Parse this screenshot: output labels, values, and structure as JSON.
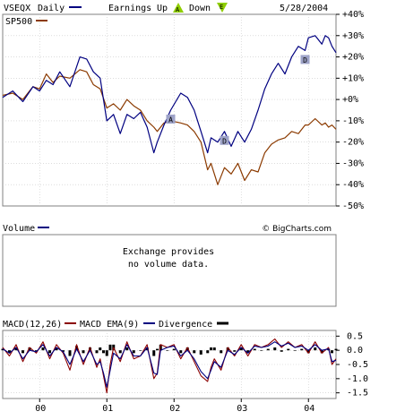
{
  "colors": {
    "vseqx": "#000080",
    "sp500": "#8b3a00",
    "ema_line": "#f0a070",
    "macd": "#000080",
    "macd_ema": "#8b0000",
    "divergence": "#000000",
    "frame": "#808080",
    "grid": "#c8c8c8",
    "earnings_up": "#8fce00",
    "earnings_down": "#8fce00",
    "marker_box": "#9ea3c8"
  },
  "header": {
    "symbol": "VSEQX",
    "period": "Daily",
    "earnings_label": "Earnings",
    "up_label": "Up",
    "down_label": "Down",
    "up_marker": "A",
    "down_marker": "E",
    "date": "5/28/2004"
  },
  "legend": {
    "sp500": "SP500"
  },
  "volume_panel": {
    "title": "Volume",
    "message_line1": "Exchange provides",
    "message_line2": "no volume data.",
    "watermark": "© BigCharts.com"
  },
  "macd_panel": {
    "macd_label": "MACD(12,26)",
    "ema_label": "MACD EMA(9)",
    "divergence_label": "Divergence"
  },
  "markers": [
    {
      "letter": "A",
      "date": "2001.95"
    },
    {
      "letter": "D",
      "date": "2002.75"
    },
    {
      "letter": "D",
      "date": "2003.95"
    }
  ],
  "chart_data": [
    {
      "type": "line",
      "title": "VSEQX Daily",
      "ylabel": "",
      "y_ticks": [
        "+40%",
        "+30%",
        "+20%",
        "+10%",
        "+0%",
        "-10%",
        "-20%",
        "-30%",
        "-40%",
        "-50%"
      ],
      "ylim": [
        -50,
        40
      ],
      "x_ticks": [
        "00",
        "01",
        "02",
        "03",
        "04"
      ],
      "xlim": [
        1999.45,
        2004.41
      ],
      "grid": true,
      "series": [
        {
          "name": "VSEQX",
          "x": [
            1999.45,
            1999.6,
            1999.75,
            1999.9,
            2000.0,
            2000.1,
            2000.2,
            2000.3,
            2000.45,
            2000.6,
            2000.7,
            2000.8,
            2000.9,
            2001.0,
            2001.1,
            2001.2,
            2001.3,
            2001.4,
            2001.5,
            2001.6,
            2001.7,
            2001.75,
            2001.85,
            2001.95,
            2002.1,
            2002.2,
            2002.3,
            2002.4,
            2002.5,
            2002.55,
            2002.65,
            2002.75,
            2002.85,
            2002.95,
            2003.05,
            2003.15,
            2003.25,
            2003.35,
            2003.45,
            2003.55,
            2003.65,
            2003.75,
            2003.85,
            2003.95,
            2004.0,
            2004.1,
            2004.2,
            2004.25,
            2004.3,
            2004.35,
            2004.41
          ],
          "values": [
            1,
            4,
            -1,
            6,
            4,
            9,
            7,
            13,
            6,
            20,
            19,
            13,
            10,
            -10,
            -7,
            -16,
            -7,
            -9,
            -6,
            -13,
            -25,
            -20,
            -12,
            -5,
            3,
            1,
            -5,
            -15,
            -25,
            -18,
            -20,
            -15,
            -22,
            -15,
            -20,
            -14,
            -5,
            5,
            12,
            17,
            12,
            20,
            25,
            23,
            29,
            30,
            26,
            30,
            29,
            25,
            22
          ]
        },
        {
          "name": "SP500",
          "x": [
            1999.45,
            1999.6,
            1999.75,
            1999.9,
            2000.0,
            2000.1,
            2000.2,
            2000.3,
            2000.45,
            2000.6,
            2000.7,
            2000.8,
            2000.9,
            2001.0,
            2001.1,
            2001.2,
            2001.3,
            2001.4,
            2001.5,
            2001.6,
            2001.7,
            2001.75,
            2001.85,
            2001.95,
            2002.1,
            2002.2,
            2002.3,
            2002.4,
            2002.5,
            2002.55,
            2002.65,
            2002.75,
            2002.85,
            2002.95,
            2003.05,
            2003.15,
            2003.25,
            2003.35,
            2003.45,
            2003.55,
            2003.65,
            2003.75,
            2003.85,
            2003.95,
            2004.0,
            2004.1,
            2004.2,
            2004.25,
            2004.3,
            2004.35,
            2004.41
          ],
          "values": [
            2,
            3,
            0,
            6,
            5,
            12,
            8,
            11,
            10,
            14,
            13,
            7,
            5,
            -4,
            -2,
            -5,
            0,
            -3,
            -5,
            -10,
            -13,
            -15,
            -11,
            -10,
            -11,
            -12,
            -15,
            -20,
            -33,
            -30,
            -40,
            -32,
            -35,
            -30,
            -38,
            -33,
            -34,
            -25,
            -21,
            -19,
            -18,
            -15,
            -16,
            -12,
            -12,
            -9,
            -12,
            -11,
            -13,
            -12,
            -14
          ]
        }
      ]
    },
    {
      "type": "line",
      "title": "MACD",
      "y_ticks": [
        "0.5",
        "0.0",
        "-0.5",
        "-1.0",
        "-1.5"
      ],
      "ylim": [
        -1.7,
        0.7
      ],
      "x_ticks": [
        "00",
        "01",
        "02",
        "03",
        "04"
      ],
      "xlim": [
        1999.45,
        2004.41
      ],
      "grid": true,
      "series": [
        {
          "name": "MACD(12,26)",
          "x": [
            1999.45,
            1999.55,
            1999.65,
            1999.75,
            1999.85,
            1999.95,
            2000.05,
            2000.15,
            2000.25,
            2000.35,
            2000.45,
            2000.55,
            2000.65,
            2000.75,
            2000.85,
            2000.9,
            2000.95,
            2001.0,
            2001.05,
            2001.1,
            2001.2,
            2001.3,
            2001.4,
            2001.5,
            2001.6,
            2001.7,
            2001.75,
            2001.8,
            2001.9,
            2002.0,
            2002.1,
            2002.2,
            2002.3,
            2002.4,
            2002.5,
            2002.55,
            2002.6,
            2002.7,
            2002.8,
            2002.9,
            2003.0,
            2003.1,
            2003.2,
            2003.3,
            2003.4,
            2003.5,
            2003.6,
            2003.7,
            2003.8,
            2003.9,
            2004.0,
            2004.1,
            2004.2,
            2004.3,
            2004.35,
            2004.41
          ],
          "values": [
            0.1,
            -0.2,
            0.2,
            -0.4,
            0.1,
            -0.1,
            0.3,
            -0.3,
            0.2,
            -0.1,
            -0.7,
            0.2,
            -0.5,
            0.1,
            -0.6,
            -0.3,
            -0.9,
            -1.5,
            -0.5,
            0.1,
            -0.4,
            0.3,
            -0.3,
            -0.2,
            0.2,
            -1.0,
            -0.8,
            0.2,
            0.1,
            0.2,
            -0.3,
            0.1,
            -0.4,
            -0.9,
            -1.1,
            -0.6,
            -0.3,
            -0.7,
            0.1,
            -0.2,
            0.2,
            -0.2,
            0.2,
            0.1,
            0.2,
            0.4,
            0.1,
            0.3,
            0.1,
            0.2,
            -0.1,
            0.3,
            -0.1,
            0.1,
            -0.5,
            -0.3
          ]
        },
        {
          "name": "MACD EMA(9)",
          "x": [
            1999.45,
            1999.55,
            1999.65,
            1999.75,
            1999.85,
            1999.95,
            2000.05,
            2000.15,
            2000.25,
            2000.35,
            2000.45,
            2000.55,
            2000.65,
            2000.75,
            2000.85,
            2000.9,
            2000.95,
            2001.0,
            2001.05,
            2001.1,
            2001.2,
            2001.3,
            2001.4,
            2001.5,
            2001.6,
            2001.7,
            2001.75,
            2001.8,
            2001.9,
            2002.0,
            2002.1,
            2002.2,
            2002.3,
            2002.4,
            2002.5,
            2002.55,
            2002.6,
            2002.7,
            2002.8,
            2002.9,
            2003.0,
            2003.1,
            2003.2,
            2003.3,
            2003.4,
            2003.5,
            2003.6,
            2003.7,
            2003.8,
            2003.9,
            2004.0,
            2004.1,
            2004.2,
            2004.3,
            2004.35,
            2004.41
          ],
          "values": [
            0.05,
            -0.1,
            0.1,
            -0.3,
            0.0,
            -0.05,
            0.2,
            -0.2,
            0.1,
            -0.05,
            -0.5,
            0.05,
            -0.4,
            0.0,
            -0.5,
            -0.4,
            -0.8,
            -1.3,
            -0.7,
            -0.1,
            -0.3,
            0.2,
            -0.2,
            -0.2,
            0.1,
            -0.8,
            -0.85,
            0.0,
            0.1,
            0.15,
            -0.2,
            0.0,
            -0.3,
            -0.75,
            -1.0,
            -0.7,
            -0.4,
            -0.6,
            0.0,
            -0.15,
            0.1,
            -0.1,
            0.15,
            0.1,
            0.15,
            0.3,
            0.15,
            0.25,
            0.1,
            0.15,
            0.0,
            0.2,
            0.0,
            0.05,
            -0.4,
            -0.35
          ]
        },
        {
          "name": "Divergence",
          "x": [
            1999.45,
            1999.55,
            1999.65,
            1999.75,
            1999.85,
            1999.95,
            2000.05,
            2000.15,
            2000.25,
            2000.35,
            2000.45,
            2000.55,
            2000.65,
            2000.75,
            2000.85,
            2000.9,
            2000.95,
            2001.0,
            2001.05,
            2001.1,
            2001.2,
            2001.3,
            2001.4,
            2001.5,
            2001.6,
            2001.7,
            2001.75,
            2001.8,
            2001.9,
            2002.0,
            2002.1,
            2002.2,
            2002.3,
            2002.4,
            2002.5,
            2002.55,
            2002.6,
            2002.7,
            2002.8,
            2002.9,
            2003.0,
            2003.1,
            2003.2,
            2003.3,
            2003.4,
            2003.5,
            2003.6,
            2003.7,
            2003.8,
            2003.9,
            2004.0,
            2004.1,
            2004.2,
            2004.3,
            2004.35,
            2004.41
          ],
          "values": [
            0.05,
            -0.1,
            0.1,
            -0.1,
            0.1,
            -0.05,
            0.1,
            -0.1,
            0.1,
            -0.05,
            -0.2,
            0.15,
            -0.1,
            0.1,
            -0.1,
            0.1,
            -0.1,
            -0.2,
            0.2,
            0.2,
            -0.1,
            0.1,
            -0.1,
            0.0,
            0.1,
            -0.2,
            0.05,
            0.2,
            0.0,
            0.05,
            -0.1,
            0.1,
            -0.1,
            -0.15,
            -0.1,
            0.1,
            0.1,
            -0.1,
            0.1,
            -0.05,
            0.1,
            -0.1,
            0.05,
            0.0,
            0.05,
            0.1,
            -0.05,
            0.05,
            0.0,
            0.05,
            -0.1,
            0.1,
            -0.1,
            0.05,
            -0.1,
            0.05
          ]
        }
      ]
    }
  ]
}
